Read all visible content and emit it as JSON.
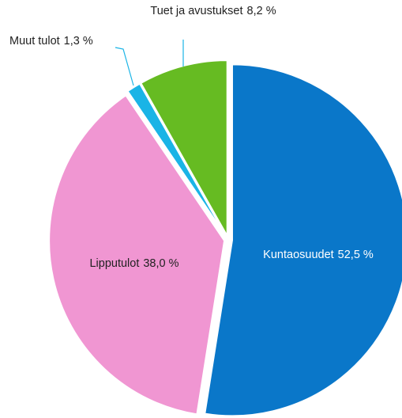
{
  "chart_data": {
    "type": "pie",
    "categories": [
      "Kuntaosuudet",
      "Lipputulot",
      "Muut tulot",
      "Tuet ja avustukset"
    ],
    "values": [
      52.5,
      38.0,
      1.3,
      8.2
    ],
    "value_labels": [
      "52,5 %",
      "38,0 %",
      "1,3 %",
      "8,2 %"
    ],
    "colors": [
      "#0a77c9",
      "#f096d2",
      "#1ab4e6",
      "#66bb22"
    ]
  }
}
